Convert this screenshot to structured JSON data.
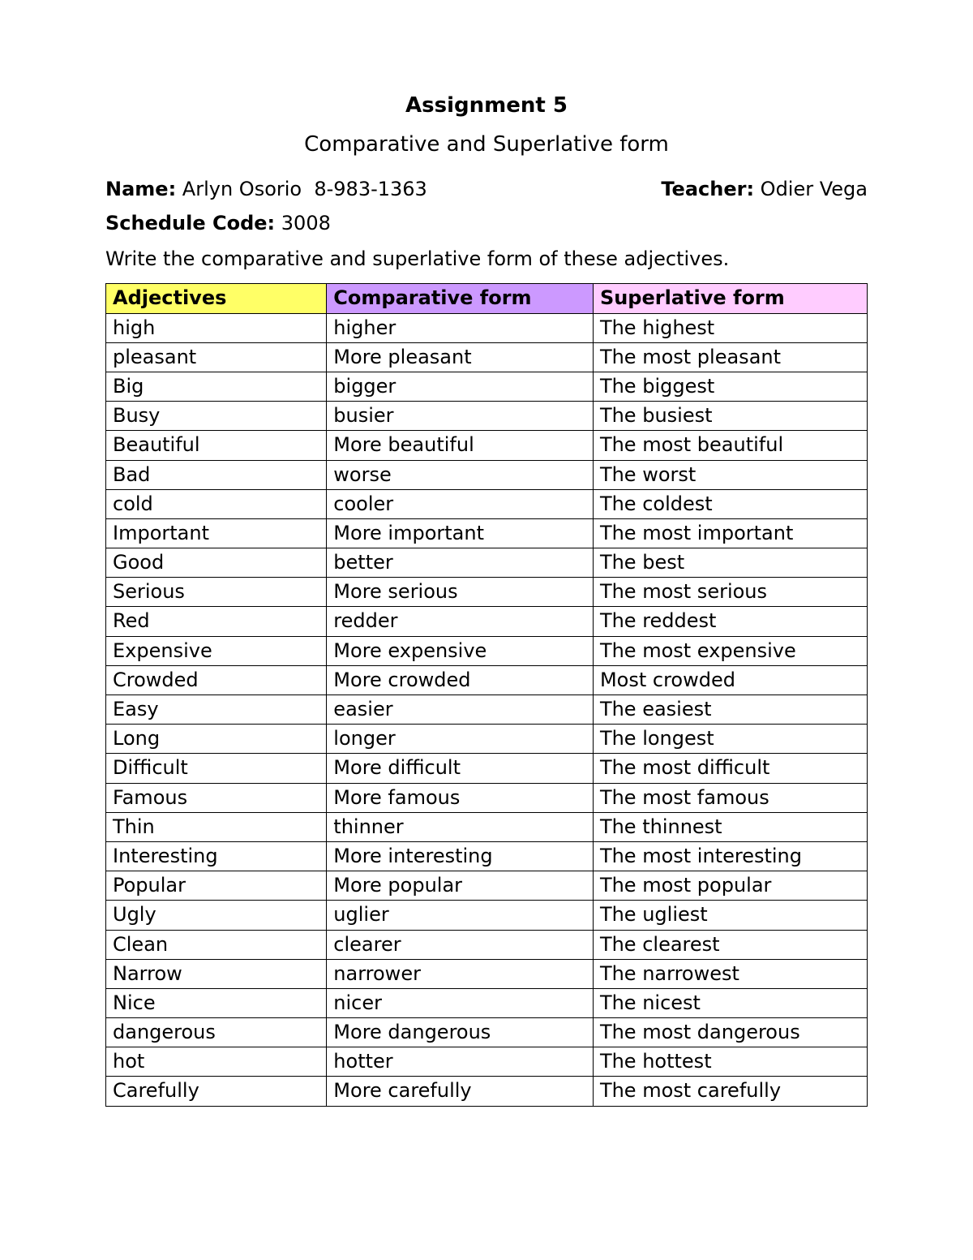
{
  "header": {
    "title": "Assignment 5",
    "subtitle": "Comparative and Superlative form",
    "name_label": "Name:",
    "name_value": " Arlyn Osorio  8-983-1363",
    "teacher_label": "Teacher:",
    "teacher_value": " Odier Vega",
    "schedule_label": "Schedule Code:",
    "schedule_value": " 3008",
    "instructions": "Write the comparative and superlative form of these adjectives."
  },
  "table": {
    "header_colors": [
      "#ffff66",
      "#cc99ff",
      "#ffccff"
    ],
    "border_color": "#000000",
    "columns": [
      "Adjectives",
      "Comparative form",
      "Superlative form"
    ],
    "rows": [
      [
        "high",
        "higher",
        "The highest"
      ],
      [
        "pleasant",
        "More pleasant",
        "The most pleasant"
      ],
      [
        "Big",
        "bigger",
        "The biggest"
      ],
      [
        "Busy",
        "busier",
        "The busiest"
      ],
      [
        "Beautiful",
        "More beautiful",
        "The most beautiful"
      ],
      [
        "Bad",
        "worse",
        "The worst"
      ],
      [
        "cold",
        "cooler",
        "The coldest"
      ],
      [
        "Important",
        "More important",
        "The most important"
      ],
      [
        "Good",
        "better",
        "The best"
      ],
      [
        "Serious",
        "More serious",
        "The most serious"
      ],
      [
        "Red",
        "redder",
        "The reddest"
      ],
      [
        "Expensive",
        "More expensive",
        "The most expensive"
      ],
      [
        "Crowded",
        "More crowded",
        "Most crowded"
      ],
      [
        "Easy",
        "easier",
        "The easiest"
      ],
      [
        "Long",
        "longer",
        "The longest"
      ],
      [
        "Difficult",
        "More difficult",
        "The most difficult"
      ],
      [
        "Famous",
        "More famous",
        "The most famous"
      ],
      [
        "Thin",
        "thinner",
        "The thinnest"
      ],
      [
        "Interesting",
        "More interesting",
        "The most interesting"
      ],
      [
        "Popular",
        "More popular",
        "The most popular"
      ],
      [
        "Ugly",
        "uglier",
        "The ugliest"
      ],
      [
        "Clean",
        "clearer",
        "The clearest"
      ],
      [
        "Narrow",
        "narrower",
        "The narrowest"
      ],
      [
        "Nice",
        "nicer",
        "The nicest"
      ],
      [
        "dangerous",
        "More dangerous",
        "The most dangerous"
      ],
      [
        "hot",
        "hotter",
        "The hottest"
      ],
      [
        "Carefully",
        "More carefully",
        "The most carefully"
      ]
    ]
  }
}
